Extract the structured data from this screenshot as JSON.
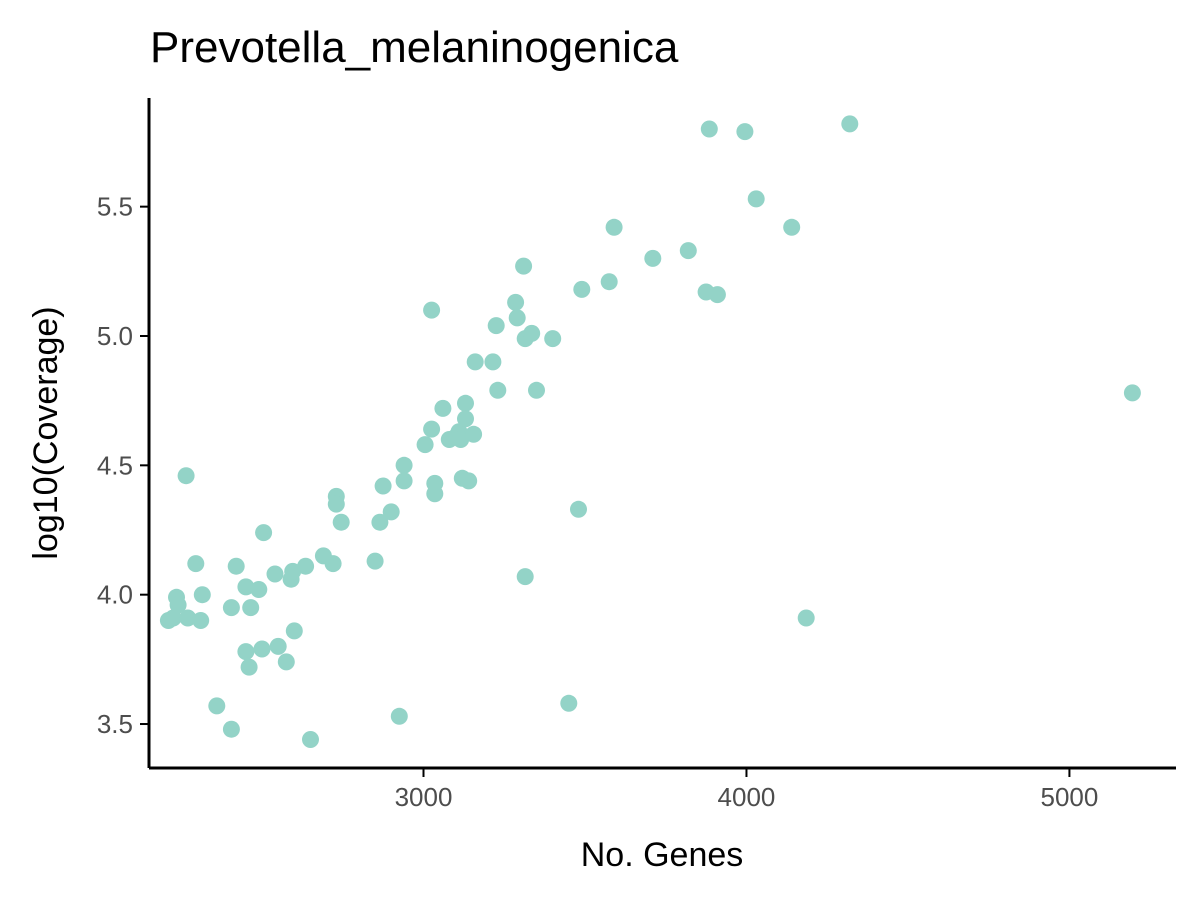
{
  "chart_data": {
    "type": "scatter",
    "title": "Prevotella_melaninogenica",
    "xlabel": "No. Genes",
    "ylabel": "log10(Coverage)",
    "xlim": [
      2150,
      5330
    ],
    "ylim": [
      3.33,
      5.92
    ],
    "xticks": [
      3000,
      4000,
      5000
    ],
    "yticks": [
      3.5,
      4.0,
      4.5,
      5.0,
      5.5
    ],
    "xtick_labels": [
      "3000",
      "4000",
      "5000"
    ],
    "ytick_labels": [
      "3.5",
      "4.0",
      "4.5",
      "5.0",
      "5.5"
    ],
    "grid": false,
    "legend": "none",
    "point_color": "#93d3c7",
    "points": [
      {
        "x": 2210,
        "y": 3.9
      },
      {
        "x": 2225,
        "y": 3.91
      },
      {
        "x": 2235,
        "y": 3.99
      },
      {
        "x": 2240,
        "y": 3.96
      },
      {
        "x": 2265,
        "y": 4.46
      },
      {
        "x": 2270,
        "y": 3.91
      },
      {
        "x": 2295,
        "y": 4.12
      },
      {
        "x": 2310,
        "y": 3.9
      },
      {
        "x": 2315,
        "y": 4.0
      },
      {
        "x": 2360,
        "y": 3.57
      },
      {
        "x": 2405,
        "y": 3.95
      },
      {
        "x": 2405,
        "y": 3.48
      },
      {
        "x": 2420,
        "y": 4.11
      },
      {
        "x": 2450,
        "y": 3.78
      },
      {
        "x": 2450,
        "y": 4.03
      },
      {
        "x": 2460,
        "y": 3.72
      },
      {
        "x": 2465,
        "y": 3.95
      },
      {
        "x": 2490,
        "y": 4.02
      },
      {
        "x": 2500,
        "y": 3.79
      },
      {
        "x": 2505,
        "y": 4.24
      },
      {
        "x": 2540,
        "y": 4.08
      },
      {
        "x": 2550,
        "y": 3.8
      },
      {
        "x": 2575,
        "y": 3.74
      },
      {
        "x": 2590,
        "y": 4.06
      },
      {
        "x": 2595,
        "y": 4.09
      },
      {
        "x": 2600,
        "y": 3.86
      },
      {
        "x": 2635,
        "y": 4.11
      },
      {
        "x": 2650,
        "y": 3.44
      },
      {
        "x": 2690,
        "y": 4.15
      },
      {
        "x": 2720,
        "y": 4.12
      },
      {
        "x": 2730,
        "y": 4.38
      },
      {
        "x": 2730,
        "y": 4.35
      },
      {
        "x": 2745,
        "y": 4.28
      },
      {
        "x": 2850,
        "y": 4.13
      },
      {
        "x": 2865,
        "y": 4.28
      },
      {
        "x": 2875,
        "y": 4.42
      },
      {
        "x": 2900,
        "y": 4.32
      },
      {
        "x": 2925,
        "y": 3.53
      },
      {
        "x": 2940,
        "y": 4.5
      },
      {
        "x": 2940,
        "y": 4.44
      },
      {
        "x": 3005,
        "y": 4.58
      },
      {
        "x": 3025,
        "y": 5.1
      },
      {
        "x": 3025,
        "y": 4.64
      },
      {
        "x": 3035,
        "y": 4.43
      },
      {
        "x": 3035,
        "y": 4.39
      },
      {
        "x": 3060,
        "y": 4.72
      },
      {
        "x": 3080,
        "y": 4.6
      },
      {
        "x": 3100,
        "y": 4.61
      },
      {
        "x": 3110,
        "y": 4.63
      },
      {
        "x": 3115,
        "y": 4.6
      },
      {
        "x": 3120,
        "y": 4.45
      },
      {
        "x": 3130,
        "y": 4.74
      },
      {
        "x": 3130,
        "y": 4.68
      },
      {
        "x": 3140,
        "y": 4.44
      },
      {
        "x": 3155,
        "y": 4.62
      },
      {
        "x": 3160,
        "y": 4.9
      },
      {
        "x": 3215,
        "y": 4.9
      },
      {
        "x": 3225,
        "y": 5.04
      },
      {
        "x": 3230,
        "y": 4.79
      },
      {
        "x": 3285,
        "y": 5.13
      },
      {
        "x": 3290,
        "y": 5.07
      },
      {
        "x": 3310,
        "y": 5.27
      },
      {
        "x": 3315,
        "y": 4.99
      },
      {
        "x": 3315,
        "y": 4.07
      },
      {
        "x": 3335,
        "y": 5.01
      },
      {
        "x": 3350,
        "y": 4.79
      },
      {
        "x": 3400,
        "y": 4.99
      },
      {
        "x": 3450,
        "y": 3.58
      },
      {
        "x": 3480,
        "y": 4.33
      },
      {
        "x": 3490,
        "y": 5.18
      },
      {
        "x": 3575,
        "y": 5.21
      },
      {
        "x": 3590,
        "y": 5.42
      },
      {
        "x": 3710,
        "y": 5.3
      },
      {
        "x": 3820,
        "y": 5.33
      },
      {
        "x": 3875,
        "y": 5.17
      },
      {
        "x": 3885,
        "y": 5.8
      },
      {
        "x": 3910,
        "y": 5.16
      },
      {
        "x": 3995,
        "y": 5.79
      },
      {
        "x": 4030,
        "y": 5.53
      },
      {
        "x": 4140,
        "y": 5.42
      },
      {
        "x": 4185,
        "y": 3.91
      },
      {
        "x": 4320,
        "y": 5.82
      },
      {
        "x": 5195,
        "y": 4.78
      }
    ]
  }
}
